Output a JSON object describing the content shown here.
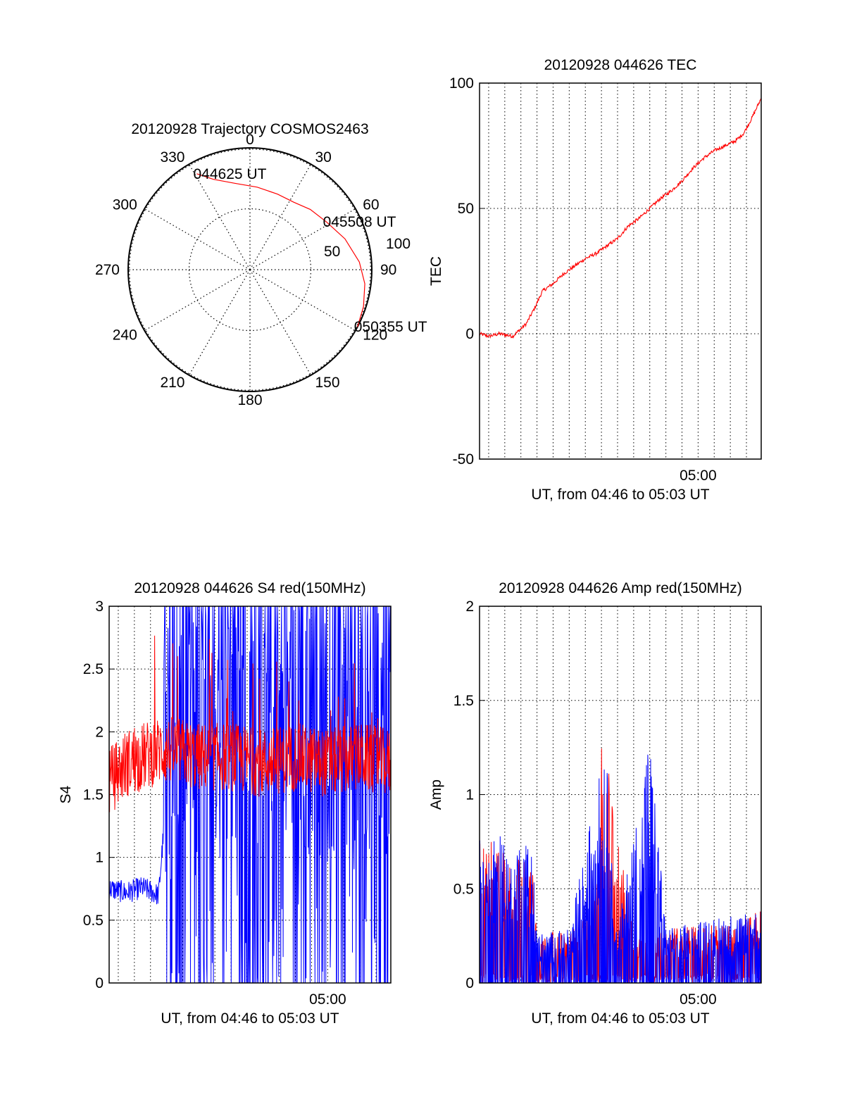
{
  "chart_data": [
    {
      "type": "polar",
      "title": "20120928 Trajectory COSMOS2463",
      "azimuth_labels": [
        "0",
        "30",
        "60",
        "90",
        "120",
        "150",
        "180",
        "210",
        "240",
        "270",
        "300",
        "330"
      ],
      "radial_labels": [
        "50",
        "100"
      ],
      "radial_max": 100,
      "grid": true,
      "series": [
        {
          "color": "#ff0000",
          "points": [
            {
              "az": 331,
              "r": 90
            },
            {
              "az": 338,
              "r": 80
            },
            {
              "az": 350,
              "r": 72
            },
            {
              "az": 5,
              "r": 68
            },
            {
              "az": 20,
              "r": 66
            },
            {
              "az": 33,
              "r": 66
            },
            {
              "az": 45,
              "r": 70
            },
            {
              "az": 58,
              "r": 74
            },
            {
              "az": 72,
              "r": 82
            },
            {
              "az": 86,
              "r": 90
            },
            {
              "az": 97,
              "r": 95
            },
            {
              "az": 108,
              "r": 98
            },
            {
              "az": 118,
              "r": 100
            }
          ]
        }
      ],
      "annotations": [
        {
          "text": "044625 UT",
          "az": 331,
          "r": 90
        },
        {
          "text": "045508 UT",
          "az": 58,
          "r": 74
        },
        {
          "text": "050355 UT",
          "az": 118,
          "r": 100
        }
      ]
    },
    {
      "type": "line",
      "title": "20120928 044626 TEC",
      "xlabel": "UT, from 04:46 to 05:03 UT",
      "ylabel": "TEC",
      "x_range": [
        "04:46:26",
        "05:03:55"
      ],
      "xticks": [
        {
          "value": "05:00:00",
          "label": "05:00"
        }
      ],
      "ylim": [
        -50,
        100
      ],
      "yticks": [
        "-50",
        "0",
        "50",
        "100"
      ],
      "grid": true,
      "series": [
        {
          "color": "#ff0000",
          "points": [
            [
              "04:46:26",
              0
            ],
            [
              "04:47:00",
              -1
            ],
            [
              "04:47:40",
              0
            ],
            [
              "04:48:30",
              -1
            ],
            [
              "04:49:20",
              4
            ],
            [
              "04:49:50",
              10
            ],
            [
              "04:50:20",
              17
            ],
            [
              "04:51:00",
              20
            ],
            [
              "04:51:40",
              24
            ],
            [
              "04:52:20",
              27
            ],
            [
              "04:53:00",
              30
            ],
            [
              "04:53:40",
              32
            ],
            [
              "04:54:20",
              35
            ],
            [
              "04:55:00",
              38
            ],
            [
              "04:55:40",
              43
            ],
            [
              "04:56:20",
              46
            ],
            [
              "04:57:00",
              50
            ],
            [
              "04:57:40",
              54
            ],
            [
              "04:58:20",
              57
            ],
            [
              "04:59:00",
              61
            ],
            [
              "04:59:40",
              66
            ],
            [
              "05:00:20",
              70
            ],
            [
              "05:01:00",
              73
            ],
            [
              "05:01:40",
              75
            ],
            [
              "05:02:20",
              77
            ],
            [
              "05:02:50",
              80
            ],
            [
              "05:03:20",
              86
            ],
            [
              "05:03:55",
              94
            ]
          ]
        }
      ]
    },
    {
      "type": "line",
      "title": "20120928 044626 S4 red(150MHz)",
      "xlabel": "UT, from 04:46 to 05:03 UT",
      "ylabel": "S4",
      "x_range": [
        "04:46:26",
        "05:03:55"
      ],
      "xticks": [
        {
          "value": "05:00:00",
          "label": "05:00"
        }
      ],
      "ylim": [
        0,
        3
      ],
      "yticks": [
        "0",
        "0.5",
        "1",
        "1.5",
        "2",
        "2.5",
        "3"
      ],
      "grid": true,
      "series": [
        {
          "color": "#0000ff",
          "description_values": [
            [
              "04:46:26",
              0.75
            ],
            [
              "04:47:30",
              0.72
            ],
            [
              "04:48:30",
              0.76
            ],
            [
              "04:49:30",
              0.7
            ],
            [
              "04:50:00",
              1.5
            ],
            [
              "04:51:00",
              2.2
            ],
            [
              "04:52:00",
              1.8
            ],
            [
              "04:53:00",
              2.0
            ],
            [
              "04:54:00",
              1.0
            ],
            [
              "04:55:00",
              2.6
            ],
            [
              "04:56:00",
              1.6
            ],
            [
              "04:57:00",
              2.1
            ],
            [
              "04:58:00",
              1.9
            ],
            [
              "04:59:00",
              2.4
            ],
            [
              "05:00:00",
              1.9
            ],
            [
              "05:01:00",
              2.2
            ],
            [
              "05:02:00",
              2.6
            ],
            [
              "05:03:55",
              2.4
            ]
          ]
        },
        {
          "color": "#ff0000",
          "description_values": [
            [
              "04:46:26",
              1.6
            ],
            [
              "04:47:30",
              1.75
            ],
            [
              "04:48:30",
              1.8
            ],
            [
              "04:49:30",
              1.85
            ],
            [
              "04:50:30",
              1.85
            ],
            [
              "04:52:00",
              1.8
            ],
            [
              "04:54:00",
              1.8
            ],
            [
              "04:56:00",
              1.75
            ],
            [
              "04:58:00",
              1.8
            ],
            [
              "05:00:00",
              1.75
            ],
            [
              "05:02:00",
              1.8
            ],
            [
              "05:03:55",
              1.75
            ]
          ]
        }
      ]
    },
    {
      "type": "line",
      "title": "20120928 044626 Amp red(150MHz)",
      "xlabel": "UT, from 04:46 to 05:03 UT",
      "ylabel": "Amp",
      "x_range": [
        "04:46:26",
        "05:03:55"
      ],
      "xticks": [
        {
          "value": "05:00:00",
          "label": "05:00"
        }
      ],
      "ylim": [
        0,
        2
      ],
      "yticks": [
        "0",
        "0.5",
        "1",
        "1.5",
        "2"
      ],
      "grid": true,
      "series": [
        {
          "color": "#ff0000",
          "description_values": [
            [
              "04:46:26",
              0.6
            ],
            [
              "04:48:00",
              0.55
            ],
            [
              "04:49:45",
              0.5
            ],
            [
              "04:50:00",
              0.22
            ],
            [
              "04:52:00",
              0.2
            ],
            [
              "04:53:40",
              0.35
            ],
            [
              "04:54:00",
              1.05
            ],
            [
              "04:56:00",
              0.2
            ],
            [
              "04:58:00",
              0.22
            ],
            [
              "05:00:00",
              0.24
            ],
            [
              "05:02:00",
              0.25
            ],
            [
              "05:03:55",
              0.3
            ]
          ]
        },
        {
          "color": "#0000ff",
          "description_values": [
            [
              "04:46:26",
              0.6
            ],
            [
              "04:48:00",
              0.6
            ],
            [
              "04:49:45",
              0.55
            ],
            [
              "04:50:00",
              0.2
            ],
            [
              "04:52:00",
              0.22
            ],
            [
              "04:54:15",
              0.98
            ],
            [
              "04:55:00",
              0.22
            ],
            [
              "04:57:00",
              1.02
            ],
            [
              "04:58:00",
              0.22
            ],
            [
              "05:00:00",
              0.25
            ],
            [
              "05:02:00",
              0.28
            ],
            [
              "05:03:55",
              0.3
            ]
          ]
        }
      ]
    }
  ]
}
